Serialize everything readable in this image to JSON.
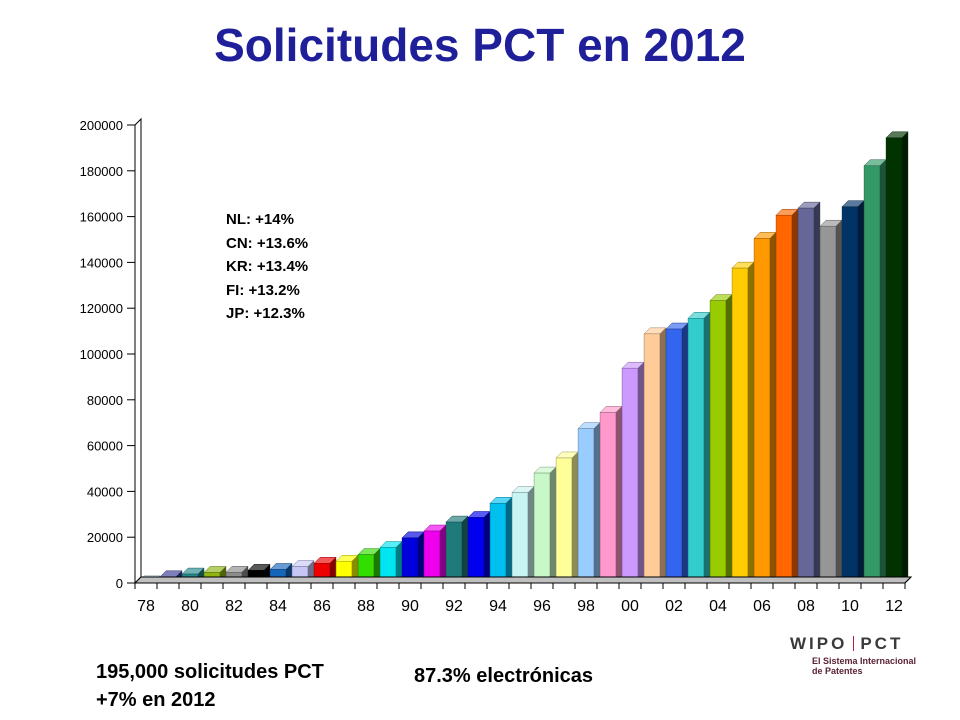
{
  "slide": {
    "title": "Solicitudes PCT en 2012",
    "annotations": [
      "NL: +14%",
      "CN: +13.6%",
      "KR: +13.4%",
      "FI: +13.2%",
      "JP: +12.3%"
    ],
    "footer_left": [
      "195,000 solicitudes PCT",
      "+7% en 2012"
    ],
    "footer_mid": "87.3% electrónicas",
    "logo_wipo": "WIPO",
    "logo_pct": "PCT",
    "logo_sub": [
      "El Sistema Internacional",
      "de Patentes"
    ]
  },
  "chart_data": {
    "type": "bar",
    "title": "",
    "xlabel": "",
    "ylabel": "",
    "ylim": [
      0,
      200000
    ],
    "yticks": [
      0,
      20000,
      40000,
      60000,
      80000,
      100000,
      120000,
      140000,
      160000,
      180000,
      200000
    ],
    "xtick_labels": [
      "78",
      "80",
      "82",
      "84",
      "86",
      "88",
      "90",
      "92",
      "94",
      "96",
      "98",
      "00",
      "02",
      "04",
      "06",
      "08",
      "10",
      "12"
    ],
    "categories": [
      "1978",
      "1979",
      "1980",
      "1981",
      "1982",
      "1983",
      "1984",
      "1985",
      "1986",
      "1987",
      "1988",
      "1989",
      "1990",
      "1991",
      "1992",
      "1993",
      "1994",
      "1995",
      "1996",
      "1997",
      "1998",
      "1999",
      "2000",
      "2001",
      "2002",
      "2003",
      "2004",
      "2005",
      "2006",
      "2007",
      "2008",
      "2009",
      "2010",
      "2011",
      "2012"
    ],
    "values": [
      500,
      2700,
      3900,
      4600,
      4700,
      5500,
      5900,
      7200,
      8600,
      9500,
      12400,
      15500,
      19700,
      22700,
      26600,
      28600,
      34800,
      39500,
      48000,
      54600,
      67400,
      74500,
      93800,
      108800,
      110900,
      115600,
      123300,
      137500,
      150500,
      160600,
      163700,
      155800,
      164300,
      182200,
      194400
    ],
    "colors": [
      "#b8d4e8",
      "#3a3a96",
      "#22888a",
      "#8fb512",
      "#8c8c8c",
      "#000000",
      "#1466bb",
      "#c7c7f7",
      "#ee0000",
      "#ffff00",
      "#33dd00",
      "#00e5f0",
      "#0000dd",
      "#ee00ee",
      "#1f7a7a",
      "#0000ee",
      "#00c0f0",
      "#c8f4f4",
      "#c8f8c8",
      "#ffff99",
      "#99ccff",
      "#ff99cc",
      "#cc99ff",
      "#ffcc99",
      "#3366ee",
      "#33cccc",
      "#99cc00",
      "#ffcc00",
      "#ff9900",
      "#ff6600",
      "#666699",
      "#969696",
      "#003366",
      "#339966",
      "#003300"
    ]
  }
}
